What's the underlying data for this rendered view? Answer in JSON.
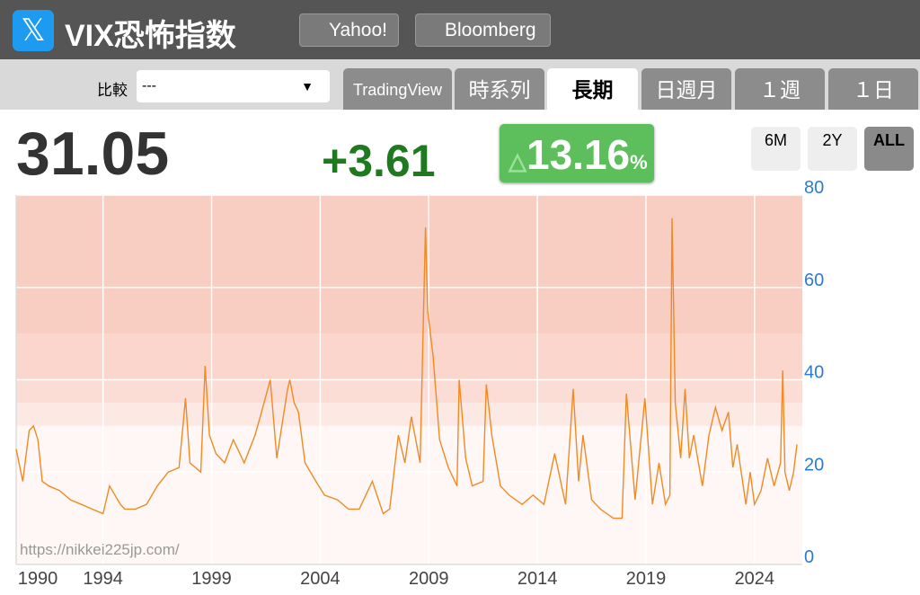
{
  "header": {
    "title": "VIX恐怖指数",
    "links": [
      "Yahoo!",
      "Bloomberg"
    ]
  },
  "compare": {
    "label": "比較",
    "value": "---"
  },
  "tabs": [
    "TradingView",
    "時系列",
    "長期",
    "日週月",
    "１週",
    "１日"
  ],
  "quote": {
    "price": "31.05",
    "change": "+3.61",
    "arrow": "△",
    "pct": "13.16",
    "pct_unit": "%"
  },
  "ranges": [
    "6M",
    "2Y",
    "ALL"
  ],
  "chart_data": {
    "type": "line",
    "color": "#f08a24",
    "watermark": "https://nikkei225jp.com/",
    "x": [
      1990.0,
      1990.3,
      1990.6,
      1990.8,
      1991.0,
      1991.2,
      1991.5,
      1992.0,
      1992.5,
      1993.0,
      1993.5,
      1994.0,
      1994.3,
      1994.8,
      1995.0,
      1995.5,
      1996.0,
      1996.5,
      1997.0,
      1997.5,
      1997.8,
      1998.0,
      1998.5,
      1998.7,
      1998.9,
      1999.2,
      1999.6,
      2000.0,
      2000.5,
      2001.0,
      2001.3,
      2001.7,
      2002.0,
      2002.5,
      2002.6,
      2002.8,
      2003.0,
      2003.3,
      2003.8,
      2004.2,
      2004.8,
      2005.3,
      2005.8,
      2006.4,
      2006.9,
      2007.2,
      2007.6,
      2007.9,
      2008.2,
      2008.6,
      2008.85,
      2008.95,
      2009.2,
      2009.5,
      2009.9,
      2010.3,
      2010.4,
      2010.7,
      2011.0,
      2011.5,
      2011.65,
      2011.9,
      2012.3,
      2012.7,
      2013.3,
      2013.8,
      2014.3,
      2014.8,
      2015.3,
      2015.65,
      2015.9,
      2016.1,
      2016.5,
      2016.9,
      2017.5,
      2017.9,
      2018.1,
      2018.5,
      2018.95,
      2019.3,
      2019.6,
      2019.9,
      2020.1,
      2020.2,
      2020.35,
      2020.6,
      2020.8,
      2021.0,
      2021.2,
      2021.6,
      2021.9,
      2022.2,
      2022.5,
      2022.8,
      2023.0,
      2023.2,
      2023.6,
      2023.8,
      2024.0,
      2024.3,
      2024.6,
      2024.9,
      2025.2,
      2025.3,
      2025.4,
      2025.6,
      2025.8,
      2025.95
    ],
    "values": [
      25,
      18,
      29,
      30,
      27,
      18,
      17,
      16,
      14,
      13,
      12,
      11,
      17,
      13,
      12,
      12,
      13,
      17,
      20,
      21,
      36,
      22,
      20,
      43,
      28,
      24,
      22,
      27,
      22,
      28,
      33,
      40,
      23,
      38,
      40,
      35,
      33,
      22,
      18,
      15,
      14,
      12,
      12,
      18,
      11,
      12,
      28,
      22,
      32,
      22,
      73,
      55,
      45,
      27,
      21,
      17,
      40,
      23,
      17,
      18,
      39,
      28,
      17,
      15,
      13,
      15,
      13,
      24,
      13,
      38,
      18,
      28,
      14,
      12,
      10,
      10,
      37,
      14,
      36,
      13,
      22,
      13,
      15,
      75,
      35,
      23,
      38,
      23,
      28,
      17,
      28,
      34,
      29,
      33,
      21,
      26,
      13,
      20,
      13,
      16,
      23,
      17,
      22,
      42,
      20,
      16,
      20,
      26
    ],
    "xlim": [
      1990,
      2026.2
    ],
    "ylim": [
      0,
      80
    ],
    "yticks": [
      0,
      20,
      40,
      60,
      80
    ],
    "xticks": [
      1990,
      1994,
      1999,
      2004,
      2009,
      2014,
      2019,
      2024
    ],
    "grid": true,
    "bands": [
      {
        "from": 0,
        "to": 30,
        "color": "#fef7f5"
      },
      {
        "from": 30,
        "to": 35,
        "color": "#fde9e4"
      },
      {
        "from": 35,
        "to": 40,
        "color": "#fbddd6"
      },
      {
        "from": 40,
        "to": 50,
        "color": "#fad6cd"
      },
      {
        "from": 50,
        "to": 80,
        "color": "#f8cdc2"
      }
    ]
  }
}
